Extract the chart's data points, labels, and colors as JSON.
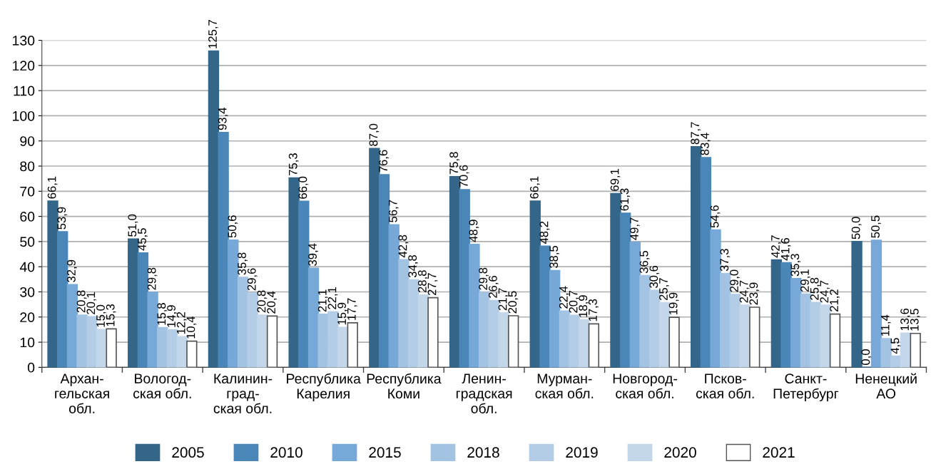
{
  "chart_data": {
    "type": "bar",
    "categories": [
      "Архан-\nгельская\nобл.",
      "Вологод-\nская обл.",
      "Калинин-\nград-\nская обл.",
      "Республика\nКарелия",
      "Республика\nКоми",
      "Ленин-\nградская\nобл.",
      "Мурман-\nская обл.",
      "Новгород-\nская обл.",
      "Псков-\nская обл.",
      "Санкт-\nПетербург",
      "Ненецкий\nАО"
    ],
    "series": [
      {
        "name": "2005",
        "color": "#336688",
        "values": [
          66.1,
          51.0,
          125.7,
          75.3,
          87.0,
          75.8,
          66.1,
          69.1,
          87.7,
          42.7,
          50.0
        ],
        "value_labels": [
          "66,1",
          "51,0",
          "125,7",
          "75,3",
          "87,0",
          "75,8",
          "66,1",
          "69,1",
          "87,7",
          "42,7",
          "50,0"
        ]
      },
      {
        "name": "2010",
        "color": "#4a86b8",
        "values": [
          53.9,
          45.5,
          93.4,
          66.0,
          76.6,
          70.6,
          48.2,
          61.3,
          83.4,
          41.6,
          0.0
        ],
        "value_labels": [
          "53,9",
          "45,5",
          "93,4",
          "66,0",
          "76,6",
          "70,6",
          "48,2",
          "61,3",
          "83,4",
          "41,6",
          "0,0"
        ]
      },
      {
        "name": "2015",
        "color": "#76a8d8",
        "values": [
          32.9,
          29.8,
          50.6,
          39.4,
          56.7,
          48.9,
          38.5,
          49.7,
          54.6,
          35.3,
          50.5
        ],
        "value_labels": [
          "32,9",
          "29,8",
          "50,6",
          "39,4",
          "56,7",
          "48,9",
          "38,5",
          "49,7",
          "54,6",
          "35,3",
          "50,5"
        ]
      },
      {
        "name": "2018",
        "color": "#a3c3e3",
        "values": [
          20.8,
          15.8,
          35.8,
          21.1,
          42.8,
          29.8,
          22.4,
          36.5,
          37.3,
          29.1,
          11.4
        ],
        "value_labels": [
          "20,8",
          "15,8",
          "35,8",
          "21,1",
          "42,8",
          "29,8",
          "22,4",
          "36,5",
          "37,3",
          "29,1",
          "11,4"
        ]
      },
      {
        "name": "2019",
        "color": "#b3cde6",
        "values": [
          20.1,
          14.9,
          29.6,
          22.1,
          34.8,
          26.6,
          20.7,
          30.6,
          29.0,
          25.8,
          4.5
        ],
        "value_labels": [
          "20,1",
          "14,9",
          "29,6",
          "22,1",
          "34,8",
          "26,6",
          "20,7",
          "30,6",
          "29,0",
          "25,8",
          "4,5"
        ]
      },
      {
        "name": "2020",
        "color": "#c3d6ea",
        "values": [
          15.0,
          12.2,
          20.8,
          15.9,
          28.8,
          21.7,
          18.9,
          25.7,
          24.7,
          24.7,
          13.6
        ],
        "value_labels": [
          "15,0",
          "12,2",
          "20,8",
          "15,9",
          "28,8",
          "21,7",
          "18,9",
          "25,7",
          "24,7",
          "24,7",
          "13,6"
        ]
      },
      {
        "name": "2021",
        "color": "#ffffff",
        "values": [
          15.3,
          10.4,
          20.4,
          17.7,
          27.7,
          20.5,
          17.3,
          19.9,
          23.9,
          21.2,
          13.5
        ],
        "value_labels": [
          "15,3",
          "10,4",
          "20,4",
          "17,7",
          "27,7",
          "20,5",
          "17,3",
          "19,9",
          "23,9",
          "21,2",
          "13,5"
        ]
      }
    ],
    "ylim": [
      0,
      130
    ],
    "yticks": [
      0,
      10,
      20,
      30,
      40,
      50,
      60,
      70,
      80,
      90,
      100,
      110,
      120,
      130
    ],
    "grid": "y",
    "legend": "bottom"
  }
}
